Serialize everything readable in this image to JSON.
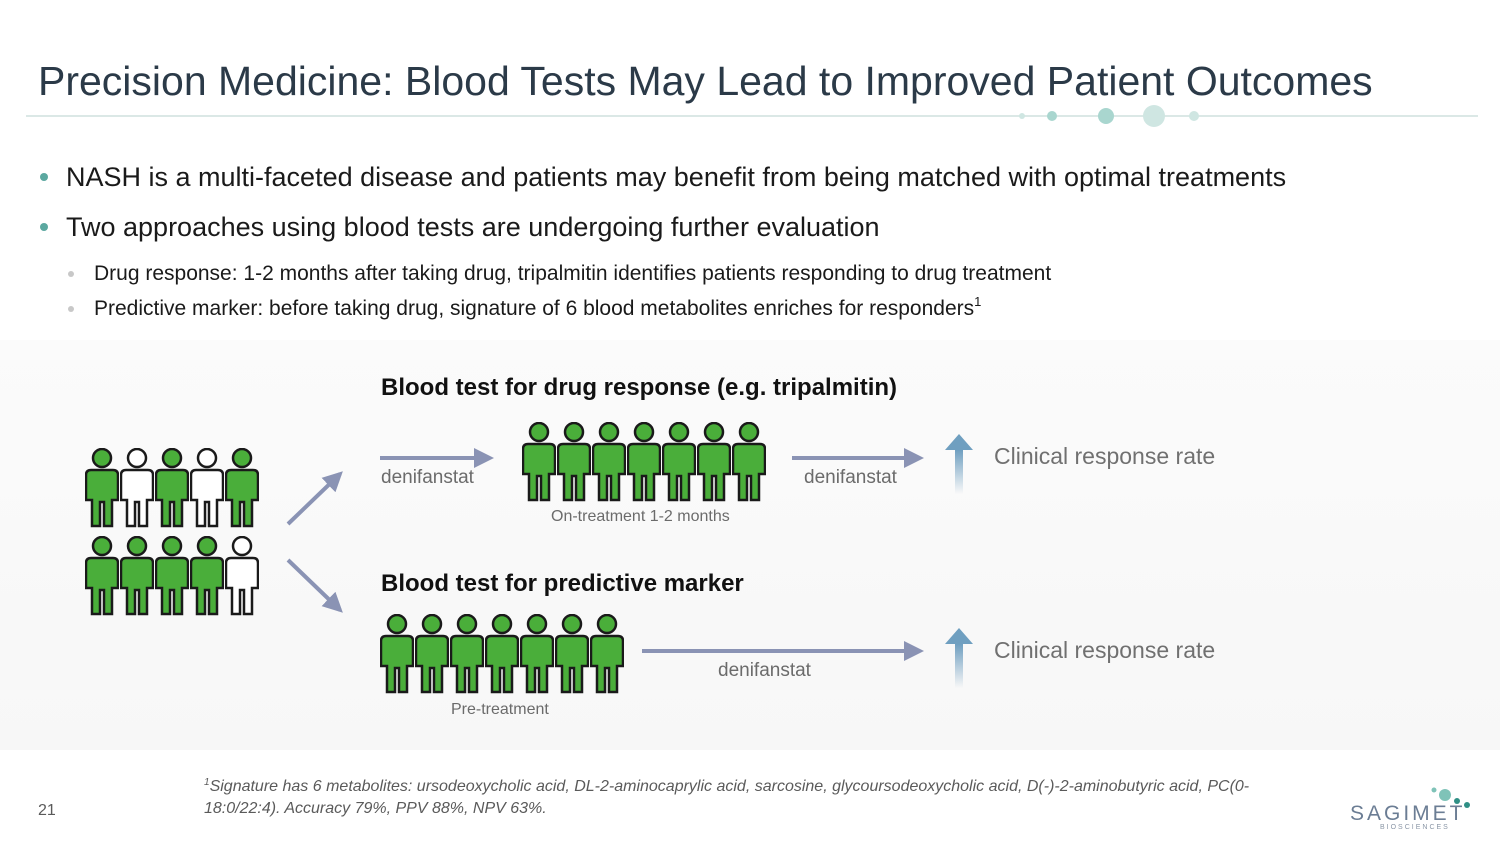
{
  "title": "Precision Medicine: Blood Tests May Lead to Improved Patient Outcomes",
  "bullets": {
    "b1": "NASH is a multi-faceted disease and patients may benefit from being matched with optimal treatments",
    "b2": "Two approaches using blood tests are undergoing further evaluation",
    "sub1": "Drug response: 1-2 months after taking drug, tripalmitin identifies patients responding to drug treatment",
    "sub2": "Predictive marker: before taking drug, signature of 6 blood metabolites enriches for responders",
    "sub2_sup": "1"
  },
  "diagram": {
    "top_title": "Blood test for drug response (e.g. tripalmitin)",
    "top_drug_left": "denifanstat",
    "top_drug_right": "denifanstat",
    "top_caption": "On-treatment 1-2 months",
    "top_response": "Clinical response rate",
    "bottom_title": "Blood test for predictive marker",
    "bottom_drug": "denifanstat",
    "bottom_caption": "Pre-treatment",
    "bottom_response": "Clinical response rate",
    "population_rows": [
      [
        "green",
        "white",
        "green",
        "white",
        "green"
      ],
      [
        "green",
        "green",
        "green",
        "green",
        "white"
      ]
    ],
    "top_group": [
      "green",
      "green",
      "green",
      "green",
      "green",
      "green",
      "green"
    ],
    "bottom_group": [
      "green",
      "green",
      "green",
      "green",
      "green",
      "green",
      "green"
    ]
  },
  "footnote": {
    "sup": "1",
    "text": "Signature has 6 metabolites: ursodeoxycholic acid, DL-2-aminocaprylic acid, sarcosine, glycoursodeoxycholic acid, D(-)-2-aminobutyric acid, PC(0-18:0/22:4). Accuracy 79%, PPV 88%, NPV 63%."
  },
  "page_number": "21",
  "logo": {
    "word": "SAGIMET",
    "sub": "BIOSCIENCES"
  },
  "colors": {
    "title": "#2b3a48",
    "bullet": "#5ba8a0",
    "arrow": "#8a93b4",
    "person_green": "#4aae3a",
    "person_white": "#ffffff",
    "up_arrow": "#7aa8c6",
    "accent_teal": "#7fc3b8"
  }
}
